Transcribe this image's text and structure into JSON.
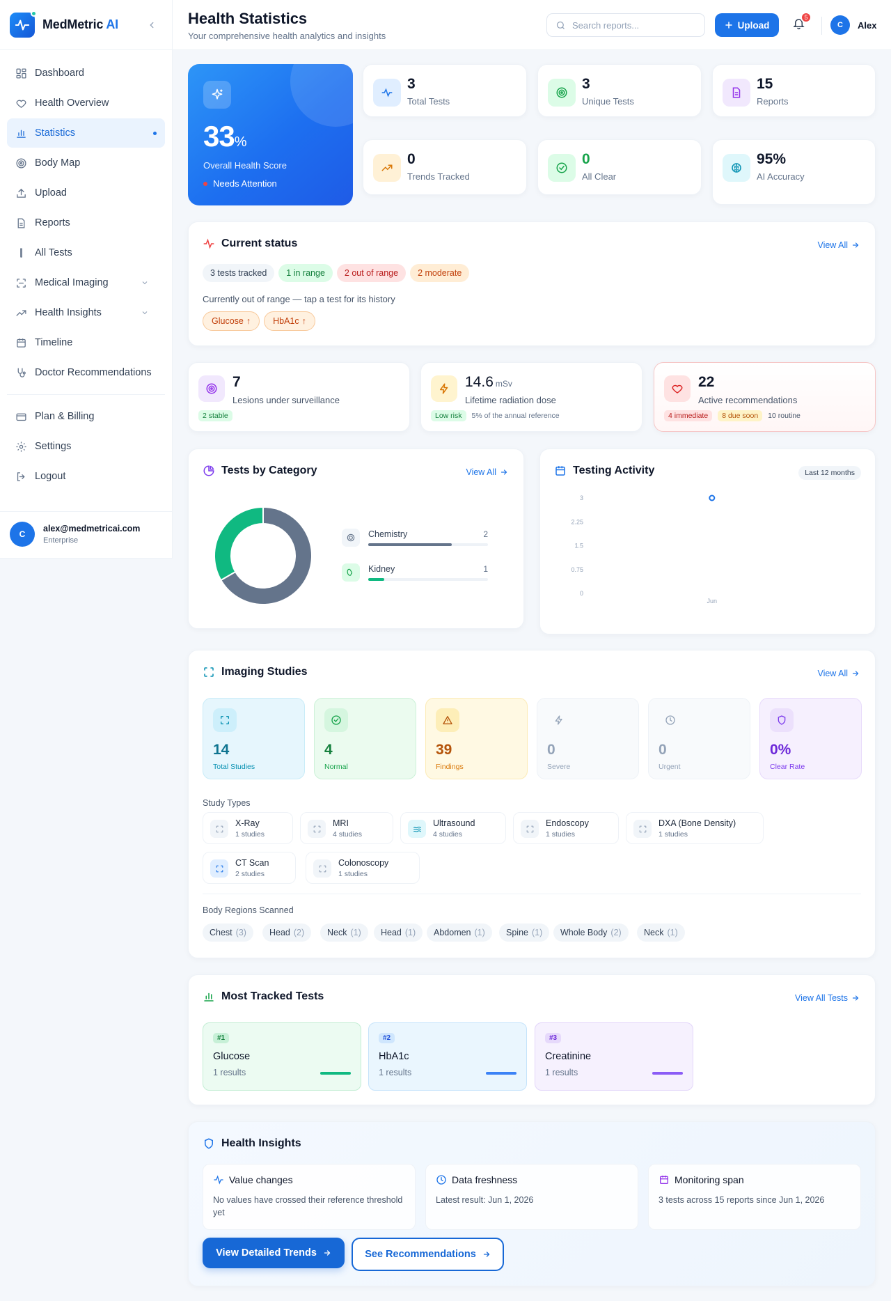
{
  "sidebar": {
    "brand_name": "MedMetric",
    "brand_suffix": "AI",
    "items": [
      {
        "label": "Dashboard",
        "icon": "grid-icon"
      },
      {
        "label": "Health Overview",
        "icon": "heart-icon"
      },
      {
        "label": "Statistics",
        "icon": "bar-chart-icon",
        "active": true
      },
      {
        "label": "Body Map",
        "icon": "target-icon"
      },
      {
        "label": "Upload",
        "icon": "upload-icon"
      },
      {
        "label": "Reports",
        "icon": "file-icon"
      },
      {
        "label": "All Tests",
        "icon": "test-tube-icon"
      },
      {
        "label": "Medical Imaging",
        "icon": "scan-icon"
      },
      {
        "label": "Health Insights",
        "icon": "trend-icon"
      },
      {
        "label": "Timeline",
        "icon": "calendar-icon"
      },
      {
        "label": "Doctor Recommendations",
        "icon": "stethoscope-icon"
      }
    ],
    "bottom_items": [
      {
        "label": "Plan & Billing",
        "icon": "credit-card-icon"
      },
      {
        "label": "Settings",
        "icon": "gear-icon"
      },
      {
        "label": "Logout",
        "icon": "logout-icon"
      }
    ],
    "user": {
      "initial": "C",
      "email": "alex@medmetricai.com",
      "plan": "Enterprise"
    }
  },
  "header": {
    "title": "Health Statistics",
    "subtitle": "Your comprehensive health analytics and insights",
    "search_placeholder": "Search reports...",
    "upload_label": "Upload",
    "notification_count": "5",
    "user_initial": "C",
    "user_name": "Alex"
  },
  "hero": {
    "score": "33",
    "unit": "%",
    "label": "Overall Health Score",
    "status": "Needs Attention"
  },
  "stats": [
    {
      "value": "3",
      "label": "Total Tests"
    },
    {
      "value": "3",
      "label": "Unique Tests"
    },
    {
      "value": "15",
      "label": "Reports"
    },
    {
      "value": "0",
      "label": "Trends Tracked"
    },
    {
      "value": "0",
      "label": "All Clear"
    },
    {
      "value": "95%",
      "label": "AI Accuracy"
    }
  ],
  "current_status": {
    "title": "Current status",
    "view_all": "View All",
    "pills": [
      "3 tests tracked",
      "1 in range",
      "2 out of range",
      "2 moderate"
    ],
    "note": "Currently out of range — tap a test for its history",
    "flags": [
      "Glucose",
      "HbA1c"
    ],
    "flag_arrow": "↑"
  },
  "mini_cards": {
    "lesions": {
      "value": "7",
      "label": "Lesions under surveillance",
      "tag": "2 stable"
    },
    "radiation": {
      "value": "14.6",
      "unit": "mSv",
      "label": "Lifetime radiation dose",
      "tag": "Low risk",
      "note": "5% of the annual reference"
    },
    "recommendations": {
      "value": "22",
      "label": "Active recommendations",
      "tag1": "4 immediate",
      "tag2": "8 due soon",
      "tag3": "10 routine"
    }
  },
  "tests_by_category": {
    "title": "Tests by Category",
    "view_all": "View All",
    "items": [
      {
        "label": "Chemistry",
        "value": "2"
      },
      {
        "label": "Kidney",
        "value": "1"
      }
    ]
  },
  "testing_activity": {
    "title": "Testing Activity",
    "range": "Last 12 months"
  },
  "chart_data": [
    {
      "type": "pie",
      "categories": [
        "Chemistry",
        "Kidney"
      ],
      "values": [
        2,
        1
      ],
      "colors": [
        "#64748b",
        "#10b981"
      ]
    },
    {
      "type": "scatter",
      "x": [
        "Jun"
      ],
      "values": [
        3
      ],
      "ylim": [
        0,
        3
      ],
      "yticks": [
        "3",
        "2.25",
        "1.5",
        "0.75",
        "0"
      ],
      "color": "#1d74e8"
    }
  ],
  "imaging": {
    "title": "Imaging Studies",
    "view_all": "View All",
    "tiles": [
      {
        "value": "14",
        "label": "Total Studies"
      },
      {
        "value": "4",
        "label": "Normal"
      },
      {
        "value": "39",
        "label": "Findings"
      },
      {
        "value": "0",
        "label": "Severe"
      },
      {
        "value": "0",
        "label": "Urgent"
      },
      {
        "value": "0%",
        "label": "Clear Rate"
      }
    ],
    "study_types_title": "Study Types",
    "study_types": [
      {
        "name": "X-Ray",
        "count": "1 studies"
      },
      {
        "name": "MRI",
        "count": "4 studies"
      },
      {
        "name": "Ultrasound",
        "count": "4 studies"
      },
      {
        "name": "Endoscopy",
        "count": "1 studies"
      },
      {
        "name": "DXA (Bone Density)",
        "count": "1 studies"
      },
      {
        "name": "CT Scan",
        "count": "2 studies"
      },
      {
        "name": "Colonoscopy",
        "count": "1 studies"
      }
    ],
    "regions_title": "Body Regions Scanned",
    "regions": [
      {
        "name": "Chest",
        "count": "(3)"
      },
      {
        "name": "Head",
        "count": "(2)"
      },
      {
        "name": "Neck",
        "count": "(1)"
      },
      {
        "name": "Head",
        "count": "(1)"
      },
      {
        "name": "Abdomen",
        "count": "(1)"
      },
      {
        "name": "Spine",
        "count": "(1)"
      },
      {
        "name": "Whole Body",
        "count": "(2)"
      },
      {
        "name": "Neck",
        "count": "(1)"
      }
    ]
  },
  "most_tracked": {
    "title": "Most Tracked Tests",
    "view_all": "View All Tests",
    "tests": [
      {
        "rank": "#1",
        "name": "Glucose",
        "results": "1 results"
      },
      {
        "rank": "#2",
        "name": "HbA1c",
        "results": "1 results"
      },
      {
        "rank": "#3",
        "name": "Creatinine",
        "results": "1 results"
      }
    ]
  },
  "insights": {
    "title": "Health Insights",
    "cards": [
      {
        "title": "Value changes",
        "desc": "No values have crossed their reference threshold yet"
      },
      {
        "title": "Data freshness",
        "desc": "Latest result: Jun 1, 2026"
      },
      {
        "title": "Monitoring span",
        "desc": "3 tests across 15 reports since Jun 1, 2026"
      }
    ],
    "primary_button": "View Detailed Trends",
    "secondary_button": "See Recommendations"
  }
}
